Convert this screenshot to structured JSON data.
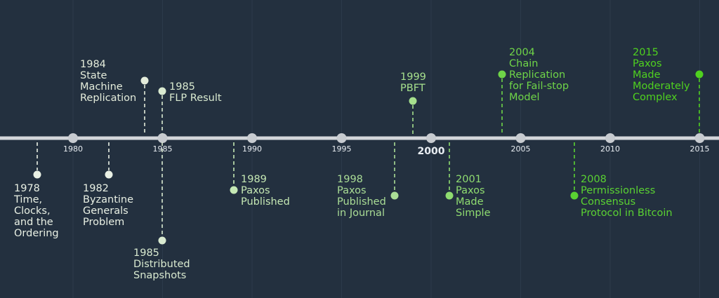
{
  "colors": {
    "background": "#23303f",
    "grid": "#2c3a4b",
    "axis": "#d3d6da",
    "tick_marker": "#c7cbd0",
    "tick_text": "#e8edf2",
    "early_dot": "#e9f0e4",
    "early_text": "#e8edf2"
  },
  "axis": {
    "ticks": [
      {
        "year": 1980,
        "label": "1980",
        "major": false
      },
      {
        "year": 1985,
        "label": "1985",
        "major": false
      },
      {
        "year": 1990,
        "label": "1990",
        "major": false
      },
      {
        "year": 1995,
        "label": "1995",
        "major": false
      },
      {
        "year": 2000,
        "label": "2000",
        "major": true
      },
      {
        "year": 2005,
        "label": "2005",
        "major": false
      },
      {
        "year": 2010,
        "label": "2010",
        "major": false
      },
      {
        "year": 2015,
        "label": "2015",
        "major": false
      }
    ]
  },
  "events": [
    {
      "id": "lamport-clocks",
      "year": 1978,
      "side": "below",
      "color": "#e9f0e4",
      "lines": [
        "1978",
        "Time,",
        "Clocks,",
        "and the",
        "Ordering"
      ]
    },
    {
      "id": "byzantine-generals",
      "year": 1982,
      "side": "below",
      "color": "#e9f0e4",
      "lines": [
        "1982",
        "Byzantine",
        "Generals",
        "Problem"
      ]
    },
    {
      "id": "state-machine-replication",
      "year": 1984,
      "side": "above",
      "color": "#e4ecdb",
      "lines": [
        "1984",
        "State",
        "Machine",
        "Replication"
      ]
    },
    {
      "id": "flp-result",
      "year": 1985,
      "side": "above",
      "color": "#d9ead0",
      "lines": [
        "1985",
        "FLP Result"
      ]
    },
    {
      "id": "distributed-snapshots",
      "year": 1985,
      "side": "below",
      "color": "#d9ead0",
      "lines": [
        "1985",
        "Distributed",
        "Snapshots"
      ]
    },
    {
      "id": "paxos-published",
      "year": 1989,
      "side": "below",
      "color": "#c5e8b4",
      "lines": [
        "1989",
        "Paxos",
        "Published"
      ]
    },
    {
      "id": "paxos-journal",
      "year": 1998,
      "side": "below",
      "color": "#aadd96",
      "lines": [
        "1998",
        "Paxos",
        "Published",
        "in Journal"
      ]
    },
    {
      "id": "pbft",
      "year": 1999,
      "side": "above",
      "color": "#a6e08d",
      "lines": [
        "1999",
        "PBFT"
      ]
    },
    {
      "id": "paxos-made-simple",
      "year": 2001,
      "side": "below",
      "color": "#8fdc70",
      "lines": [
        "2001",
        "Paxos",
        "Made",
        "Simple"
      ]
    },
    {
      "id": "chain-replication",
      "year": 2004,
      "side": "above",
      "color": "#6fd548",
      "lines": [
        "2004",
        "Chain",
        "Replication",
        "for Fail-stop",
        "Model"
      ]
    },
    {
      "id": "bitcoin-consensus",
      "year": 2008,
      "side": "below",
      "color": "#5ad232",
      "lines": [
        "2008",
        "Permissionless",
        "Consensus",
        "Protocol in Bitcoin"
      ]
    },
    {
      "id": "paxos-moderately-complex",
      "year": 2015,
      "side": "above",
      "color": "#4fd11f",
      "lines": [
        "2015",
        "Paxos",
        "Made",
        "Moderately",
        "Complex"
      ]
    }
  ]
}
